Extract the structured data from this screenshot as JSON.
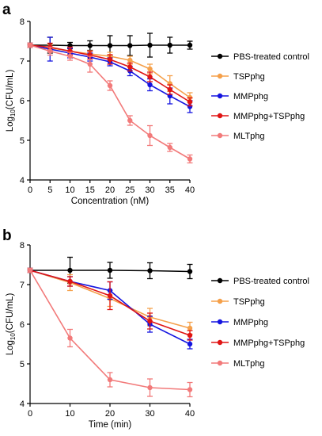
{
  "chart_data": [
    {
      "panel": "a",
      "type": "line",
      "xlabel": "Concentration (nM)",
      "ylabel": {
        "prefix": "Log",
        "sub": "10",
        "suffix": "(CFU/mL)"
      },
      "x": [
        0,
        5,
        10,
        15,
        20,
        25,
        30,
        35,
        40
      ],
      "xticks": [
        0,
        5,
        10,
        15,
        20,
        25,
        30,
        35,
        40
      ],
      "yticks": [
        4,
        5,
        6,
        7,
        8
      ],
      "xlim": [
        0,
        40
      ],
      "ylim": [
        4,
        8
      ],
      "legend_position": "right",
      "series": [
        {
          "name": "PBS-treated control",
          "color": "#000000",
          "values": [
            7.4,
            7.4,
            7.39,
            7.39,
            7.39,
            7.39,
            7.4,
            7.4,
            7.4
          ],
          "errors": [
            0.05,
            0.2,
            0.08,
            0.12,
            0.25,
            0.25,
            0.3,
            0.2,
            0.1
          ]
        },
        {
          "name": "TSPphg",
          "color": "#f5a04a",
          "values": [
            7.4,
            7.33,
            7.25,
            7.18,
            7.12,
            7.02,
            6.8,
            6.43,
            6.08
          ],
          "errors": [
            0.05,
            0.08,
            0.08,
            0.08,
            0.1,
            0.1,
            0.12,
            0.2,
            0.12
          ]
        },
        {
          "name": "MMPphg",
          "color": "#1414e0",
          "values": [
            7.4,
            7.3,
            7.2,
            7.1,
            6.98,
            6.75,
            6.4,
            6.12,
            5.85
          ],
          "errors": [
            0.05,
            0.3,
            0.12,
            0.1,
            0.1,
            0.12,
            0.15,
            0.2,
            0.15
          ]
        },
        {
          "name": "MMPphg+TSPphg",
          "color": "#e01414",
          "values": [
            7.4,
            7.35,
            7.25,
            7.15,
            7.04,
            6.85,
            6.6,
            6.28,
            5.97
          ],
          "errors": [
            0.05,
            0.1,
            0.1,
            0.1,
            0.12,
            0.1,
            0.12,
            0.12,
            0.1
          ]
        },
        {
          "name": "MLTphg",
          "color": "#f27a7a",
          "values": [
            7.4,
            7.25,
            7.12,
            6.92,
            6.38,
            5.5,
            5.12,
            4.82,
            4.53
          ],
          "errors": [
            0.05,
            0.1,
            0.1,
            0.2,
            0.12,
            0.12,
            0.25,
            0.1,
            0.1
          ]
        }
      ]
    },
    {
      "panel": "b",
      "type": "line",
      "xlabel": "Time (min)",
      "ylabel": {
        "prefix": "Log",
        "sub": "10",
        "suffix": "(CFU/mL)"
      },
      "x": [
        0,
        10,
        20,
        30,
        40
      ],
      "xticks": [
        0,
        10,
        20,
        30,
        40
      ],
      "yticks": [
        4,
        5,
        6,
        7,
        8
      ],
      "xlim": [
        0,
        40
      ],
      "ylim": [
        4,
        8
      ],
      "legend_position": "right",
      "series": [
        {
          "name": "PBS-treated control",
          "color": "#000000",
          "values": [
            7.36,
            7.36,
            7.36,
            7.35,
            7.33
          ],
          "errors": [
            0.05,
            0.33,
            0.2,
            0.2,
            0.18
          ]
        },
        {
          "name": "TSPphg",
          "color": "#f5a04a",
          "values": [
            7.36,
            7.05,
            6.65,
            6.18,
            5.9
          ],
          "errors": [
            0.05,
            0.2,
            0.2,
            0.22,
            0.15
          ]
        },
        {
          "name": "MMPphg",
          "color": "#1414e0",
          "values": [
            7.36,
            7.08,
            6.85,
            6.0,
            5.5
          ],
          "errors": [
            0.05,
            0.12,
            0.22,
            0.2,
            0.12
          ]
        },
        {
          "name": "MMPphg+TSPphg",
          "color": "#e01414",
          "values": [
            7.36,
            7.08,
            6.72,
            6.08,
            5.72
          ],
          "errors": [
            0.05,
            0.12,
            0.35,
            0.2,
            0.12
          ]
        },
        {
          "name": "MLTphg",
          "color": "#f27a7a",
          "values": [
            7.36,
            5.65,
            4.6,
            4.4,
            4.35
          ],
          "errors": [
            0.05,
            0.22,
            0.18,
            0.22,
            0.18
          ]
        }
      ]
    }
  ]
}
